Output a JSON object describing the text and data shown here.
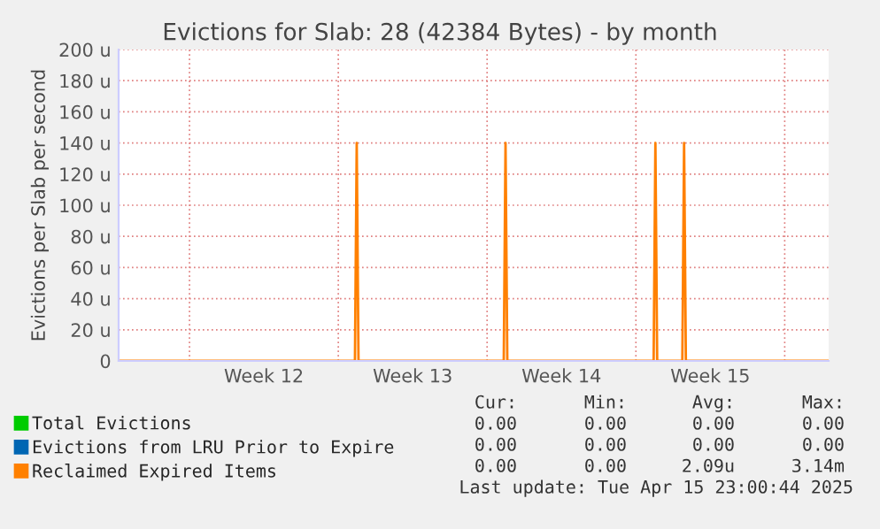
{
  "chart_data": {
    "type": "line",
    "title": "Evictions for Slab: 28 (42384 Bytes) - by month",
    "ylabel": "Evictions per Slab per second",
    "xlim": [
      "2025-03-13T16:00",
      "2025-04-16T01:36"
    ],
    "xticks": [
      {
        "value": "2025-03-17",
        "label": null
      },
      {
        "value": "2025-03-20T12:00",
        "label": "Week 12"
      },
      {
        "value": "2025-03-24",
        "label": null
      },
      {
        "value": "2025-03-27T12:00",
        "label": "Week 13"
      },
      {
        "value": "2025-03-31",
        "label": null
      },
      {
        "value": "2025-04-03T12:00",
        "label": "Week 14"
      },
      {
        "value": "2025-04-07",
        "label": null
      },
      {
        "value": "2025-04-10T12:00",
        "label": "Week 15"
      },
      {
        "value": "2025-04-14",
        "label": null
      }
    ],
    "ylim": [
      0,
      200
    ],
    "yticks": [
      0,
      {
        "value": 20,
        "label": "20 u"
      },
      {
        "value": 40,
        "label": "40 u"
      },
      {
        "value": 60,
        "label": "60 u"
      },
      {
        "value": 80,
        "label": "80 u"
      },
      {
        "value": 100,
        "label": "100 u"
      },
      {
        "value": 120,
        "label": "120 u"
      },
      {
        "value": 140,
        "label": "140 u"
      },
      {
        "value": 160,
        "label": "160 u"
      },
      {
        "value": 180,
        "label": "180 u"
      },
      {
        "value": 200,
        "label": "200 u"
      }
    ],
    "grid": true,
    "legend": "bottom left",
    "series": [
      {
        "name": "Total Evictions",
        "color": "#00cc00"
      },
      {
        "name": "Evictions from LRU Prior to Expire",
        "color": "#0066b3"
      },
      {
        "name": "Reclaimed Expired Items",
        "color": "#ff8000",
        "x": [
          "2025-03-13T16:00",
          "2025-03-24T18:48",
          "2025-03-24T20:48",
          "2025-03-24T22:48",
          "2025-03-31T18:48",
          "2025-03-31T20:48",
          "2025-03-31T22:48",
          "2025-04-07T20:00",
          "2025-04-07T22:00",
          "2025-04-08T00:00",
          "2025-04-09T04:24",
          "2025-04-09T06:24",
          "2025-04-09T08:24",
          "2025-04-16T01:36"
        ],
        "values": [
          0,
          0,
          140,
          0,
          0,
          140,
          0,
          0,
          140,
          0,
          0,
          140,
          0,
          0
        ]
      }
    ],
    "annotations": [
      "Cur:",
      "Min:",
      "Avg:",
      "Max:",
      "0.00",
      "0.00",
      "0.00",
      "0.00",
      "0.00",
      "0.00",
      "0.00",
      "0.00",
      "0.00",
      "0.00",
      "2.09u",
      "3.14m",
      "Last update: Tue Apr 15 23:00:44 2025"
    ]
  }
}
